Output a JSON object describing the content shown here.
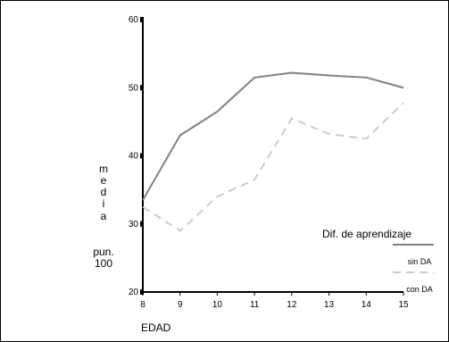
{
  "chart_data": {
    "type": "line",
    "x": [
      8,
      9,
      10,
      11,
      12,
      13,
      14,
      15
    ],
    "xlabel": "EDAD",
    "ylabel_lines": [
      "m",
      "e",
      "d",
      "i",
      "a",
      "pun.",
      "100"
    ],
    "ylim": [
      20,
      60
    ],
    "yticks": [
      20,
      30,
      40,
      50,
      60
    ],
    "legend_title": "Dif. de aprendizaje",
    "legend_position": "right",
    "series": [
      {
        "name": "sin DA",
        "values": [
          33.5,
          43,
          46.5,
          51.5,
          52.2,
          51.8,
          51.5,
          50
        ],
        "color": "#808080",
        "dash": "solid"
      },
      {
        "name": "con DA",
        "values": [
          32.5,
          29,
          34,
          36.5,
          45.5,
          43.2,
          42.5,
          47.8
        ],
        "color": "#cccccc",
        "dash": "dashed"
      }
    ]
  }
}
